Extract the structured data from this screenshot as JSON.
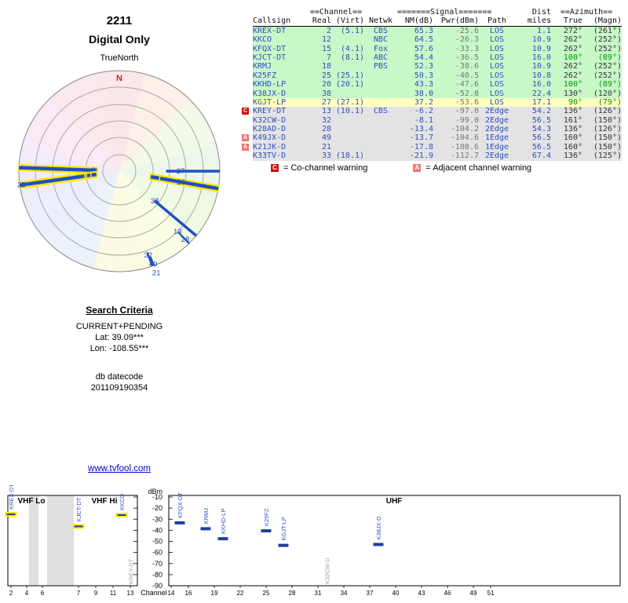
{
  "colors": {
    "row_strong_green": "#c8f7c8",
    "row_moderate_yellow": "#ffffc0",
    "row_weak_gray": "#e3e3e3",
    "co_channel_red": "#cc1111",
    "adjacent_channel_pink": "#ee7777",
    "data_blue": "#2d4fc4",
    "power_gray": "#787878",
    "azimuth_green": "#009700",
    "bar_blue": "#1f3f9e",
    "bar_highlight_yellow": "#ffe800",
    "offscale_label_gray": "#9a9a9a",
    "north_marker_red": "#cc2222",
    "link_blue": "#0000cc"
  },
  "radar": {
    "title": "2211",
    "subtitle": "Digital Only",
    "true_north_label": "TrueNorth",
    "north_marker": "N",
    "needles": [
      {
        "channel": "2",
        "azimuth": 272,
        "nm_db": 65.3,
        "strength": "strong",
        "label_radius": 33
      },
      {
        "channel": "12",
        "azimuth": 262,
        "nm_db": 64.5,
        "strength": "strong",
        "label_radius": 45
      },
      {
        "channel": "15",
        "azimuth": 262,
        "nm_db": 57.6,
        "strength": "strong",
        "label_radius": 97
      },
      {
        "channel": "18",
        "azimuth": 262,
        "nm_db": 52.3,
        "strength": "strong",
        "label_radius": 112
      },
      {
        "channel": "25",
        "azimuth": 262,
        "nm_db": 50.3,
        "strength": "strong",
        "label_radius": 126
      },
      {
        "channel": "7",
        "azimuth": 100,
        "nm_db": 54.4,
        "strength": "strong",
        "label_radius": 64
      },
      {
        "channel": "20",
        "azimuth": 100,
        "nm_db": 43.3,
        "strength": "strong",
        "label_radius": 80
      },
      {
        "channel": "27",
        "azimuth": 90,
        "nm_db": 37.2,
        "strength": "medium",
        "label_radius": 78
      },
      {
        "channel": "38",
        "azimuth": 130,
        "nm_db": 38.0,
        "strength": "medium",
        "label_radius": 59
      },
      {
        "channel": "13",
        "azimuth": 136,
        "nm_db": -6.2,
        "strength": "weak",
        "label_radius": 107
      },
      {
        "channel": "28",
        "azimuth": 136,
        "nm_db": -13.4,
        "strength": "weak",
        "label_radius": 121
      },
      {
        "channel": "32",
        "azimuth": 161,
        "nm_db": -8.1,
        "strength": "weak",
        "label_radius": 113
      },
      {
        "channel": "49",
        "azimuth": 160,
        "nm_db": -13.7,
        "strength": "weak",
        "label_radius": 126
      },
      {
        "channel": "21",
        "azimuth": 160,
        "nm_db": -17.8,
        "strength": "weak",
        "label_radius": 138
      },
      {
        "channel": "33",
        "azimuth": 136,
        "nm_db": -21.9,
        "strength": "weak",
        "label_radius": null
      }
    ]
  },
  "table": {
    "headers": {
      "callsign": "Callsign",
      "channel_group": "==Channel==",
      "real": "Real",
      "virt": "(Virt)",
      "netwk": "Netwk",
      "signal_group": "=======Signal=======",
      "nm": "NM(dB)",
      "pwr": "Pwr(dBm)",
      "path": "Path",
      "dist": "Dist",
      "miles": "miles",
      "azimuth_group": "==Azimuth==",
      "true": "True",
      "magn": "(Magn)"
    },
    "rows": [
      {
        "callsign": "KREX-DT",
        "real": "2",
        "virt": "(5.1)",
        "netwk": "CBS",
        "nm_db": "65.3",
        "pwr_dbm": "-25.6",
        "path": "LOS",
        "miles": "1.1",
        "az_true": "272°",
        "az_magn": "(261°)",
        "band": "green",
        "warning": "",
        "az_color": ""
      },
      {
        "callsign": "KKCO",
        "real": "12",
        "virt": "",
        "netwk": "NBC",
        "nm_db": "64.5",
        "pwr_dbm": "-26.3",
        "path": "LOS",
        "miles": "10.9",
        "az_true": "262°",
        "az_magn": "(252°)",
        "band": "green",
        "warning": "",
        "az_color": ""
      },
      {
        "callsign": "KFQX-DT",
        "real": "15",
        "virt": "(4.1)",
        "netwk": "Fox",
        "nm_db": "57.6",
        "pwr_dbm": "-33.3",
        "path": "LOS",
        "miles": "10.9",
        "az_true": "262°",
        "az_magn": "(252°)",
        "band": "green",
        "warning": "",
        "az_color": ""
      },
      {
        "callsign": "KJCT-DT",
        "real": "7",
        "virt": "(8.1)",
        "netwk": "ABC",
        "nm_db": "54.4",
        "pwr_dbm": "-36.5",
        "path": "LOS",
        "miles": "16.0",
        "az_true": "100°",
        "az_magn": "(89°)",
        "band": "green",
        "warning": "",
        "az_color": "green"
      },
      {
        "callsign": "KRMJ",
        "real": "18",
        "virt": "",
        "netwk": "PBS",
        "nm_db": "52.3",
        "pwr_dbm": "-38.6",
        "path": "LOS",
        "miles": "10.9",
        "az_true": "262°",
        "az_magn": "(252°)",
        "band": "green",
        "warning": "",
        "az_color": ""
      },
      {
        "callsign": "K25FZ",
        "real": "25",
        "virt": "(25.1)",
        "netwk": "",
        "nm_db": "50.3",
        "pwr_dbm": "-40.5",
        "path": "LOS",
        "miles": "10.8",
        "az_true": "262°",
        "az_magn": "(252°)",
        "band": "green",
        "warning": "",
        "az_color": ""
      },
      {
        "callsign": "KKHD-LP",
        "real": "20",
        "virt": "(20.1)",
        "netwk": "",
        "nm_db": "43.3",
        "pwr_dbm": "-47.6",
        "path": "LOS",
        "miles": "16.0",
        "az_true": "100°",
        "az_magn": "(89°)",
        "band": "green",
        "warning": "",
        "az_color": "green"
      },
      {
        "callsign": "K38JX-D",
        "real": "38",
        "virt": "",
        "netwk": "",
        "nm_db": "38.0",
        "pwr_dbm": "-52.8",
        "path": "LOS",
        "miles": "22.4",
        "az_true": "130°",
        "az_magn": "(120°)",
        "band": "green",
        "warning": "",
        "az_color": ""
      },
      {
        "callsign": "KGJT-LP",
        "real": "27",
        "virt": "(27.1)",
        "netwk": "",
        "nm_db": "37.2",
        "pwr_dbm": "-53.6",
        "path": "LOS",
        "miles": "17.1",
        "az_true": "90°",
        "az_magn": "(79°)",
        "band": "yellow",
        "warning": "",
        "az_color": "green"
      },
      {
        "callsign": "KREY-DT",
        "real": "13",
        "virt": "(10.1)",
        "netwk": "CBS",
        "nm_db": "-6.2",
        "pwr_dbm": "-97.0",
        "path": "2Edge",
        "miles": "54.2",
        "az_true": "136°",
        "az_magn": "(126°)",
        "band": "gray",
        "warning": "C",
        "az_color": ""
      },
      {
        "callsign": "K32CW-D",
        "real": "32",
        "virt": "",
        "netwk": "",
        "nm_db": "-8.1",
        "pwr_dbm": "-99.0",
        "path": "2Edge",
        "miles": "56.5",
        "az_true": "161°",
        "az_magn": "(150°)",
        "band": "gray",
        "warning": "",
        "az_color": ""
      },
      {
        "callsign": "K28AD-D",
        "real": "28",
        "virt": "",
        "netwk": "",
        "nm_db": "-13.4",
        "pwr_dbm": "-104.2",
        "path": "2Edge",
        "miles": "54.3",
        "az_true": "136°",
        "az_magn": "(126°)",
        "band": "gray",
        "warning": "",
        "az_color": ""
      },
      {
        "callsign": "K49JX-D",
        "real": "49",
        "virt": "",
        "netwk": "",
        "nm_db": "-13.7",
        "pwr_dbm": "-104.6",
        "path": "1Edge",
        "miles": "56.5",
        "az_true": "160°",
        "az_magn": "(150°)",
        "band": "gray",
        "warning": "A",
        "az_color": ""
      },
      {
        "callsign": "K21JK-D",
        "real": "21",
        "virt": "",
        "netwk": "",
        "nm_db": "-17.8",
        "pwr_dbm": "-108.6",
        "path": "1Edge",
        "miles": "56.5",
        "az_true": "160°",
        "az_magn": "(150°)",
        "band": "gray",
        "warning": "A",
        "az_color": ""
      },
      {
        "callsign": "K33TV-D",
        "real": "33",
        "virt": "(18.1)",
        "netwk": "",
        "nm_db": "-21.9",
        "pwr_dbm": "-112.7",
        "path": "2Edge",
        "miles": "67.4",
        "az_true": "136°",
        "az_magn": "(125°)",
        "band": "gray",
        "warning": "",
        "az_color": ""
      }
    ]
  },
  "legend": {
    "co_symbol": "C",
    "co_text": "= Co-channel warning",
    "adj_symbol": "A",
    "adj_text": "= Adjacent channel warning"
  },
  "search": {
    "title": "Search Criteria",
    "mode": "CURRENT+PENDING",
    "lat": "Lat: 39.09***",
    "lon": "Lon: -108.55***",
    "db_label": "db datecode",
    "db_value": "201109190354"
  },
  "footer_link": {
    "text": "www.tvfool.com"
  },
  "chart_data": {
    "type": "bar",
    "title": "",
    "ylabel": "dBm",
    "xlabel": "Channel",
    "ylim": [
      -90,
      -10
    ],
    "grid": false,
    "y_ticks": [
      -10,
      -20,
      -30,
      -40,
      -50,
      -60,
      -70,
      -80,
      -90
    ],
    "sections": [
      {
        "label": "VHF Lo"
      },
      {
        "label": "VHF Hi"
      },
      {
        "label": "UHF"
      }
    ],
    "vhf_lo_ticks": [
      2,
      4,
      6
    ],
    "vhf_hi_ticks": [
      7,
      9,
      11,
      13
    ],
    "uhf_ticks": [
      14,
      16,
      19,
      22,
      25,
      28,
      31,
      34,
      37,
      40,
      43,
      46,
      49,
      51
    ],
    "bars": [
      {
        "callsign": "KREX-DT",
        "channel": 2,
        "pwr_dbm": -25.6,
        "highlight": true,
        "offscale": false
      },
      {
        "callsign": "KJCT-DT",
        "channel": 7,
        "pwr_dbm": -36.5,
        "highlight": true,
        "offscale": false
      },
      {
        "callsign": "KKCO",
        "channel": 12,
        "pwr_dbm": -26.3,
        "highlight": true,
        "offscale": false
      },
      {
        "callsign": "KREY-DT",
        "channel": 13,
        "pwr_dbm": -97.0,
        "highlight": false,
        "offscale": true
      },
      {
        "callsign": "KFQX-DT",
        "channel": 15,
        "pwr_dbm": -33.3,
        "highlight": false,
        "offscale": false
      },
      {
        "callsign": "KRMJ",
        "channel": 18,
        "pwr_dbm": -38.6,
        "highlight": false,
        "offscale": false
      },
      {
        "callsign": "KKHD-LP",
        "channel": 20,
        "pwr_dbm": -47.6,
        "highlight": false,
        "offscale": false
      },
      {
        "callsign": "K25FZ",
        "channel": 25,
        "pwr_dbm": -40.5,
        "highlight": false,
        "offscale": false
      },
      {
        "callsign": "KGJT-LP",
        "channel": 27,
        "pwr_dbm": -53.6,
        "highlight": false,
        "offscale": false
      },
      {
        "callsign": "K32CW-D",
        "channel": 32,
        "pwr_dbm": -99.0,
        "highlight": false,
        "offscale": true
      },
      {
        "callsign": "K38JX-D",
        "channel": 38,
        "pwr_dbm": -52.8,
        "highlight": false,
        "offscale": false
      }
    ]
  }
}
